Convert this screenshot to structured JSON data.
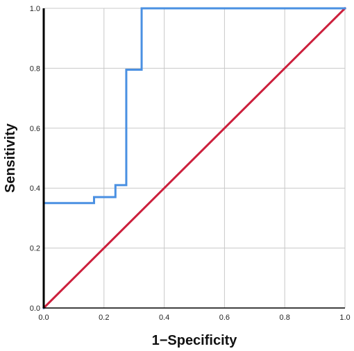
{
  "chart_data": {
    "type": "line",
    "xlabel": "1−Specificity",
    "ylabel": "Sensitivity",
    "xlim": [
      0.0,
      1.0
    ],
    "ylim": [
      0.0,
      1.0
    ],
    "grid": true,
    "x_ticks": [
      "0.0",
      "0.2",
      "0.4",
      "0.6",
      "0.8",
      "1.0"
    ],
    "y_ticks": [
      "0.0",
      "0.2",
      "0.4",
      "0.6",
      "0.8",
      "1.0"
    ],
    "series": [
      {
        "color": "#4a90e2",
        "points": [
          [
            0.0,
            0.0
          ],
          [
            0.0,
            0.35
          ],
          [
            0.167,
            0.35
          ],
          [
            0.167,
            0.37
          ],
          [
            0.238,
            0.37
          ],
          [
            0.238,
            0.41
          ],
          [
            0.274,
            0.41
          ],
          [
            0.274,
            0.795
          ],
          [
            0.325,
            0.795
          ],
          [
            0.325,
            1.0
          ],
          [
            1.0,
            1.0
          ]
        ]
      },
      {
        "color": "#cc1f3c",
        "points": [
          [
            0.0,
            0.0
          ],
          [
            1.0,
            1.0
          ]
        ]
      }
    ]
  }
}
